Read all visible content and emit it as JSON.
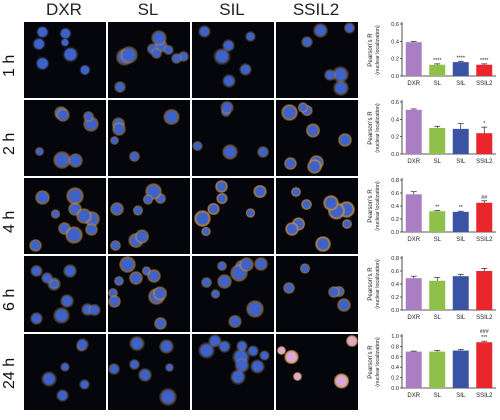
{
  "columns": [
    "DXR",
    "SL",
    "SIL",
    "SSIL2"
  ],
  "rows": [
    "1 h",
    "2 h",
    "4 h",
    "6 h",
    "24 h"
  ],
  "colors": {
    "DXR": "#a97ec2",
    "SL": "#8fc049",
    "SIL": "#3b53a4",
    "SSIL2": "#e8262b",
    "nucleus": "#3e62c9",
    "drug": "#c9913a",
    "background": "#05060c"
  },
  "chart_data": [
    {
      "type": "bar",
      "title": "1 h",
      "categories": [
        "DXR",
        "SL",
        "SIL",
        "SSIL2"
      ],
      "values": [
        0.39,
        0.13,
        0.16,
        0.13
      ],
      "errors": [
        0.01,
        0.01,
        0.01,
        0.01
      ],
      "annotations": [
        "",
        "****",
        "****",
        "****"
      ],
      "ylabel": "Pearson's R",
      "ylabel2": "(nuclear localization)",
      "yticks": [
        "0.0",
        "0.2",
        "0.4",
        "0.6"
      ],
      "ylim": [
        0,
        0.6
      ]
    },
    {
      "type": "bar",
      "title": "2 h",
      "categories": [
        "DXR",
        "SL",
        "SIL",
        "SSIL2"
      ],
      "values": [
        0.51,
        0.3,
        0.29,
        0.24
      ],
      "errors": [
        0.01,
        0.02,
        0.06,
        0.07
      ],
      "annotations": [
        "",
        "",
        "",
        "*"
      ],
      "ylabel": "Pearson's R",
      "ylabel2": "(nuclear localization)",
      "yticks": [
        "0.0",
        "0.2",
        "0.4",
        "0.6"
      ],
      "ylim": [
        0,
        0.6
      ]
    },
    {
      "type": "bar",
      "title": "4 h",
      "categories": [
        "DXR",
        "SL",
        "SIL",
        "SSIL2"
      ],
      "values": [
        0.58,
        0.32,
        0.31,
        0.45
      ],
      "errors": [
        0.04,
        0.01,
        0.01,
        0.03
      ],
      "annotations": [
        "",
        "**",
        "**",
        "##"
      ],
      "ylabel": "Pearson's R",
      "ylabel2": "(nuclear localization)",
      "yticks": [
        "0.0",
        "0.2",
        "0.4",
        "0.6",
        "0.8"
      ],
      "ylim": [
        0,
        0.8
      ]
    },
    {
      "type": "bar",
      "title": "6 h",
      "categories": [
        "DXR",
        "SL",
        "SIL",
        "SSIL2"
      ],
      "values": [
        0.49,
        0.45,
        0.52,
        0.6
      ],
      "errors": [
        0.03,
        0.05,
        0.03,
        0.04
      ],
      "annotations": [
        "",
        "",
        "",
        ""
      ],
      "ylabel": "Pearson's R",
      "ylabel2": "(nuclear localization)",
      "yticks": [
        "0.0",
        "0.2",
        "0.4",
        "0.6",
        "0.8"
      ],
      "ylim": [
        0,
        0.8
      ]
    },
    {
      "type": "bar",
      "title": "24 h",
      "categories": [
        "DXR",
        "SL",
        "SIL",
        "SSIL2"
      ],
      "values": [
        0.7,
        0.7,
        0.72,
        0.88
      ],
      "errors": [
        0.01,
        0.02,
        0.02,
        0.02
      ],
      "annotations": [
        "",
        "",
        "",
        "***"
      ],
      "annotations2": [
        "",
        "",
        "",
        "###"
      ],
      "ylabel": "Pearson's R",
      "ylabel2": "(nuclear localization)",
      "yticks": [
        "0.0",
        "0.2",
        "0.4",
        "0.6",
        "0.8",
        "1.0"
      ],
      "ylim": [
        0,
        1.0
      ]
    }
  ]
}
